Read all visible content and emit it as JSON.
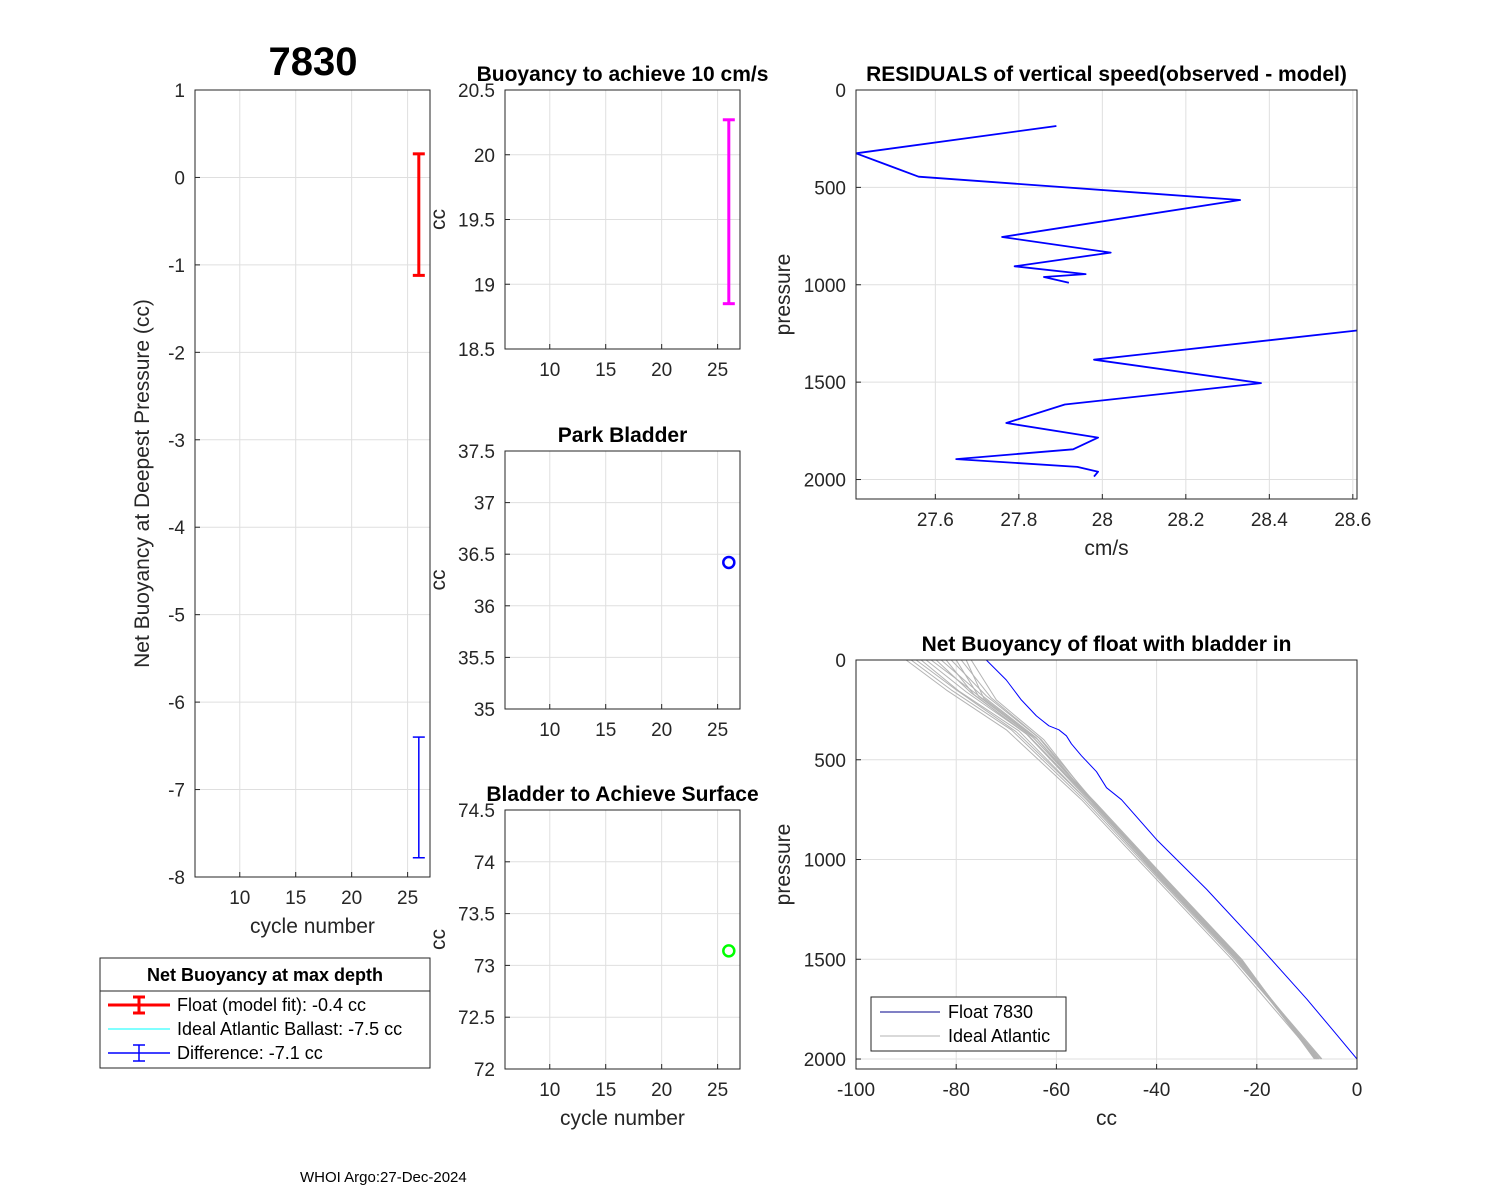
{
  "figure_title": "7830",
  "footer": "WHOI Argo:27-Dec-2024",
  "colors": {
    "red": "#ff0000",
    "blue": "#0000ff",
    "magenta": "#ff00ff",
    "green": "#00ff00",
    "cyan": "#00ffff",
    "gray": "#b3b3b3"
  },
  "chart_data": [
    {
      "id": "net-buoyancy-deepest",
      "type": "errorbar",
      "title": "",
      "xlabel": "cycle number",
      "ylabel": "Net Buoyancy at Deepest Pressure (cc)",
      "xlim": [
        6,
        27
      ],
      "ylim": [
        -8,
        1
      ],
      "xticks": [
        10,
        15,
        20,
        25
      ],
      "yticks": [
        -8,
        -7,
        -6,
        -5,
        -4,
        -3,
        -2,
        -1,
        0,
        1
      ],
      "grid": true,
      "series": [
        {
          "name": "Float (model fit)",
          "x": 26,
          "low": -1.12,
          "high": 0.27,
          "color": "red",
          "width": 3
        },
        {
          "name": "Difference",
          "x": 26,
          "low": -7.78,
          "high": -6.4,
          "color": "blue",
          "width": 1.5
        }
      ],
      "legend": {
        "title": "Net Buoyancy at max depth",
        "entries": [
          {
            "label": "Float (model fit):  -0.4 cc",
            "color": "red",
            "style": "errorbar-thick"
          },
          {
            "label": "Ideal Atlantic Ballast:  -7.5 cc",
            "color": "cyan",
            "style": "line"
          },
          {
            "label": "Difference:  -7.1 cc",
            "color": "blue",
            "style": "errorbar"
          }
        ]
      }
    },
    {
      "id": "buoyancy-10cms",
      "type": "errorbar",
      "title": "Buoyancy to achieve 10 cm/s",
      "xlabel": "",
      "ylabel": "cc",
      "xlim": [
        6,
        27
      ],
      "ylim": [
        18.5,
        20.5
      ],
      "xticks": [
        10,
        15,
        20,
        25
      ],
      "yticks": [
        18.5,
        19,
        19.5,
        20,
        20.5
      ],
      "ytick_labels": [
        "18.5",
        "19",
        "19.5",
        "20",
        "20.5"
      ],
      "grid": true,
      "series": [
        {
          "name": "Buoyancy",
          "x": 26,
          "low": 18.85,
          "high": 20.27,
          "color": "magenta",
          "width": 3
        }
      ]
    },
    {
      "id": "park-bladder",
      "type": "scatter",
      "title": "Park Bladder",
      "xlabel": "",
      "ylabel": "cc",
      "xlim": [
        6,
        27
      ],
      "ylim": [
        35,
        37.5
      ],
      "xticks": [
        10,
        15,
        20,
        25
      ],
      "yticks": [
        35,
        35.5,
        36,
        36.5,
        37,
        37.5
      ],
      "ytick_labels": [
        "35",
        "35.5",
        "36",
        "36.5",
        "37",
        "37.5"
      ],
      "grid": true,
      "series": [
        {
          "name": "Park Bladder",
          "x": [
            26
          ],
          "y": [
            36.42
          ],
          "color": "blue",
          "marker": "circle"
        }
      ]
    },
    {
      "id": "bladder-surface",
      "type": "scatter",
      "title": "Bladder to Achieve Surface",
      "xlabel": "cycle number",
      "ylabel": "cc",
      "xlim": [
        6,
        27
      ],
      "ylim": [
        72,
        74.5
      ],
      "xticks": [
        10,
        15,
        20,
        25
      ],
      "yticks": [
        72,
        72.5,
        73,
        73.5,
        74,
        74.5
      ],
      "ytick_labels": [
        "72",
        "72.5",
        "73",
        "73.5",
        "74",
        "74.5"
      ],
      "grid": true,
      "series": [
        {
          "name": "Surface Bladder",
          "x": [
            26
          ],
          "y": [
            73.14
          ],
          "color": "green",
          "marker": "circle"
        }
      ]
    },
    {
      "id": "residuals",
      "type": "line",
      "title": "RESIDUALS of vertical speed(observed - model)",
      "xlabel": "cm/s",
      "ylabel": "pressure",
      "xlim": [
        27.41,
        28.61
      ],
      "ylim": [
        0,
        2100
      ],
      "yreversed": true,
      "xticks": [
        27.6,
        27.8,
        28,
        28.2,
        28.4,
        28.6
      ],
      "xtick_labels": [
        "27.6",
        "27.8",
        "28",
        "28.2",
        "28.4",
        "28.6"
      ],
      "yticks": [
        0,
        500,
        1000,
        1500,
        2000
      ],
      "grid": true,
      "series": [
        {
          "name": "Residual",
          "color": "blue",
          "x": [
            27.89,
            27.41,
            27.56,
            28.33,
            27.76,
            28.02,
            27.79,
            27.96,
            27.86,
            27.92
          ],
          "y": [
            185,
            325,
            445,
            565,
            755,
            835,
            905,
            945,
            960,
            990
          ]
        },
        {
          "name": "Residual deep",
          "color": "blue",
          "x": [
            28.61,
            27.98,
            28.38,
            27.91,
            27.77,
            27.99,
            27.93,
            27.65,
            27.94,
            27.99,
            27.98
          ],
          "y": [
            1235,
            1385,
            1505,
            1615,
            1710,
            1785,
            1845,
            1895,
            1935,
            1960,
            1985
          ]
        }
      ]
    },
    {
      "id": "net-buoyancy-profile",
      "type": "line",
      "title": "Net Buoyancy of float with bladder in",
      "xlabel": "cc",
      "ylabel": "pressure",
      "xlim": [
        -100,
        0
      ],
      "ylim": [
        0,
        2050
      ],
      "yreversed": true,
      "xticks": [
        -100,
        -80,
        -60,
        -40,
        -20,
        0
      ],
      "yticks": [
        0,
        500,
        1000,
        1500,
        2000
      ],
      "grid": true,
      "series": [
        {
          "name": "Float 7830",
          "color": "blue",
          "x": [
            -74,
            -70,
            -67,
            -64,
            -63,
            -61.5,
            -59.5,
            -58,
            -57,
            -55,
            -52,
            -50,
            -47,
            -40,
            -30,
            -20,
            -15,
            -10,
            -5,
            0
          ],
          "y": [
            0,
            100,
            200,
            280,
            300,
            330,
            350,
            380,
            420,
            480,
            560,
            640,
            700,
            900,
            1150,
            1420,
            1560,
            1700,
            1850,
            2000
          ]
        },
        {
          "name": "Ideal Atlantic",
          "color": "gray",
          "bundle": [
            {
              "x": [
                -90,
                -82,
                -70,
                -55,
                -40,
                -25,
                -8
              ],
              "y": [
                0,
                150,
                350,
                700,
                1100,
                1500,
                2000
              ]
            },
            {
              "x": [
                -88,
                -80,
                -68,
                -54,
                -39,
                -24,
                -7
              ],
              "y": [
                0,
                150,
                360,
                700,
                1100,
                1500,
                2000
              ]
            },
            {
              "x": [
                -86,
                -78,
                -66,
                -53,
                -38.5,
                -23.5,
                -7.5
              ],
              "y": [
                0,
                160,
                370,
                710,
                1100,
                1500,
                2000
              ]
            },
            {
              "x": [
                -85,
                -76,
                -65,
                -52,
                -38,
                -23,
                -8.5
              ],
              "y": [
                0,
                170,
                380,
                720,
                1100,
                1500,
                2000
              ]
            },
            {
              "x": [
                -83,
                -75,
                -64,
                -52.5,
                -38.2,
                -23.3,
                -8
              ],
              "y": [
                0,
                175,
                390,
                720,
                1100,
                1500,
                2000
              ]
            },
            {
              "x": [
                -81,
                -74,
                -63.5,
                -53,
                -38.8,
                -23.8,
                -8.2
              ],
              "y": [
                0,
                180,
                390,
                710,
                1100,
                1500,
                2000
              ]
            },
            {
              "x": [
                -79,
                -73,
                -63,
                -52.2,
                -38.4,
                -23.6,
                -7.8
              ],
              "y": [
                0,
                190,
                400,
                720,
                1100,
                1500,
                2000
              ]
            },
            {
              "x": [
                -77,
                -72,
                -62.5,
                -52.8,
                -38.6,
                -23.4,
                -8.4
              ],
              "y": [
                0,
                200,
                400,
                710,
                1100,
                1500,
                2000
              ]
            },
            {
              "x": [
                -89,
                -81,
                -69,
                -54.5,
                -39.5,
                -24.5,
                -7.2
              ],
              "y": [
                0,
                150,
                350,
                700,
                1100,
                1500,
                2000
              ]
            },
            {
              "x": [
                -87,
                -79.5,
                -67.5,
                -54,
                -39.2,
                -24.2,
                -7.6
              ],
              "y": [
                0,
                155,
                355,
                700,
                1100,
                1500,
                2000
              ]
            },
            {
              "x": [
                -84,
                -77,
                -66,
                -53.5,
                -38.7,
                -23.7,
                -7.9
              ],
              "y": [
                0,
                165,
                370,
                705,
                1100,
                1500,
                2000
              ]
            },
            {
              "x": [
                -82,
                -76.5,
                -65.5,
                -52.6,
                -38.3,
                -23.2,
                -8.1
              ],
              "y": [
                0,
                172,
                380,
                715,
                1100,
                1500,
                2000
              ]
            },
            {
              "x": [
                -80,
                -75.5,
                -64.5,
                -52.4,
                -38.1,
                -23.1,
                -8.3
              ],
              "y": [
                0,
                182,
                392,
                718,
                1100,
                1500,
                2000
              ]
            },
            {
              "x": [
                -78,
                -74.5,
                -63.8,
                -52.9,
                -38.9,
                -23.9,
                -7.7
              ],
              "y": [
                0,
                192,
                398,
                712,
                1100,
                1500,
                2000
              ]
            }
          ]
        }
      ],
      "legend": {
        "entries": [
          {
            "label": "Float 7830",
            "color": "darkblue"
          },
          {
            "label": "Ideal Atlantic",
            "color": "gray"
          }
        ]
      }
    }
  ]
}
